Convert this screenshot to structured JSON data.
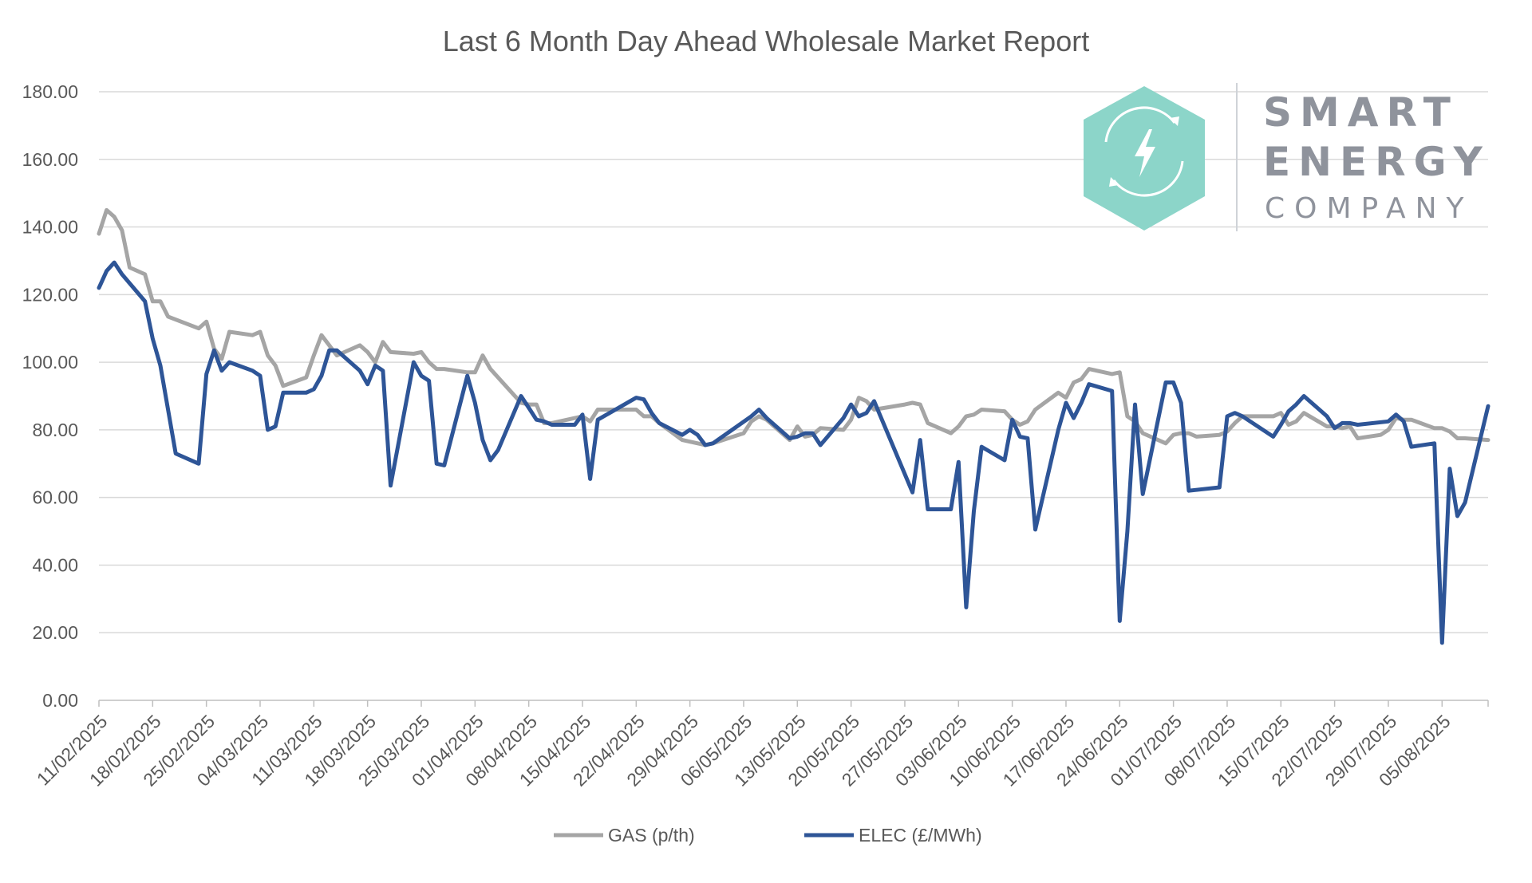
{
  "chart_data": {
    "type": "line",
    "title": "Last 6 Month Day Ahead Wholesale Market Report",
    "xlabel": "",
    "ylabel": "",
    "ylim": [
      0,
      180
    ],
    "yticks": [
      "0.00",
      "20.00",
      "40.00",
      "60.00",
      "80.00",
      "100.00",
      "120.00",
      "140.00",
      "160.00",
      "180.00"
    ],
    "x_start": "11/02/2025",
    "x_end": "11/08/2025",
    "xtick_labels": [
      "11/02/2025",
      "18/02/2025",
      "25/02/2025",
      "04/03/2025",
      "11/03/2025",
      "18/03/2025",
      "25/03/2025",
      "01/04/2025",
      "08/04/2025",
      "15/04/2025",
      "22/04/2025",
      "29/04/2025",
      "06/05/2025",
      "13/05/2025",
      "20/05/2025",
      "27/05/2025",
      "03/06/2025",
      "10/06/2025",
      "17/06/2025",
      "24/06/2025",
      "01/07/2025",
      "08/07/2025",
      "15/07/2025",
      "22/07/2025",
      "29/07/2025",
      "05/08/2025"
    ],
    "grid": "horizontal",
    "legend_position": "bottom",
    "series": [
      {
        "name": "GAS (p/th)",
        "color": "#a5a5a5",
        "points": [
          [
            "11/02/2025",
            138
          ],
          [
            "12/02/2025",
            145
          ],
          [
            "13/02/2025",
            143
          ],
          [
            "14/02/2025",
            139
          ],
          [
            "15/02/2025",
            128
          ],
          [
            "17/02/2025",
            126
          ],
          [
            "18/02/2025",
            118
          ],
          [
            "19/02/2025",
            118
          ],
          [
            "20/02/2025",
            113.5
          ],
          [
            "24/02/2025",
            110
          ],
          [
            "25/02/2025",
            112
          ],
          [
            "26/02/2025",
            104
          ],
          [
            "27/02/2025",
            101
          ],
          [
            "28/02/2025",
            109
          ],
          [
            "03/03/2025",
            108
          ],
          [
            "04/03/2025",
            109
          ],
          [
            "05/03/2025",
            102
          ],
          [
            "06/03/2025",
            99
          ],
          [
            "07/03/2025",
            93
          ],
          [
            "10/03/2025",
            95.5
          ],
          [
            "11/03/2025",
            102
          ],
          [
            "12/03/2025",
            108
          ],
          [
            "13/03/2025",
            105
          ],
          [
            "14/03/2025",
            102
          ],
          [
            "17/03/2025",
            105
          ],
          [
            "18/03/2025",
            103
          ],
          [
            "19/03/2025",
            100
          ],
          [
            "20/03/2025",
            106
          ],
          [
            "21/03/2025",
            103
          ],
          [
            "24/03/2025",
            102.5
          ],
          [
            "25/03/2025",
            103
          ],
          [
            "26/03/2025",
            100
          ],
          [
            "27/03/2025",
            98
          ],
          [
            "28/03/2025",
            98
          ],
          [
            "31/03/2025",
            97
          ],
          [
            "01/04/2025",
            97
          ],
          [
            "02/04/2025",
            102
          ],
          [
            "03/04/2025",
            98
          ],
          [
            "04/04/2025",
            95.5
          ],
          [
            "07/04/2025",
            88
          ],
          [
            "08/04/2025",
            87.5
          ],
          [
            "09/04/2025",
            87.5
          ],
          [
            "10/04/2025",
            82
          ],
          [
            "11/04/2025",
            82
          ],
          [
            "14/04/2025",
            83.5
          ],
          [
            "15/04/2025",
            84
          ],
          [
            "16/04/2025",
            82.5
          ],
          [
            "17/04/2025",
            86
          ],
          [
            "22/04/2025",
            86
          ],
          [
            "23/04/2025",
            84
          ],
          [
            "24/04/2025",
            84
          ],
          [
            "25/04/2025",
            82
          ],
          [
            "28/04/2025",
            77
          ],
          [
            "29/04/2025",
            76.5
          ],
          [
            "30/04/2025",
            76
          ],
          [
            "01/05/2025",
            75.5
          ],
          [
            "02/05/2025",
            76
          ],
          [
            "06/05/2025",
            79
          ],
          [
            "07/05/2025",
            82.5
          ],
          [
            "08/05/2025",
            84
          ],
          [
            "09/05/2025",
            83
          ],
          [
            "12/05/2025",
            77
          ],
          [
            "13/05/2025",
            81
          ],
          [
            "14/05/2025",
            78
          ],
          [
            "15/05/2025",
            78.5
          ],
          [
            "16/05/2025",
            80.5
          ],
          [
            "19/05/2025",
            80
          ],
          [
            "20/05/2025",
            83
          ],
          [
            "21/05/2025",
            89.5
          ],
          [
            "22/05/2025",
            88.5
          ],
          [
            "23/05/2025",
            86
          ],
          [
            "27/05/2025",
            87.5
          ],
          [
            "28/05/2025",
            88
          ],
          [
            "29/05/2025",
            87.5
          ],
          [
            "30/05/2025",
            82
          ],
          [
            "02/06/2025",
            79
          ],
          [
            "03/06/2025",
            81
          ],
          [
            "04/06/2025",
            84
          ],
          [
            "05/06/2025",
            84.5
          ],
          [
            "06/06/2025",
            86
          ],
          [
            "09/06/2025",
            85.5
          ],
          [
            "10/06/2025",
            83
          ],
          [
            "11/06/2025",
            81.5
          ],
          [
            "12/06/2025",
            82.5
          ],
          [
            "13/06/2025",
            86
          ],
          [
            "16/06/2025",
            91
          ],
          [
            "17/06/2025",
            89.5
          ],
          [
            "18/06/2025",
            94
          ],
          [
            "19/06/2025",
            95
          ],
          [
            "20/06/2025",
            98
          ],
          [
            "23/06/2025",
            96.5
          ],
          [
            "24/06/2025",
            97
          ],
          [
            "25/06/2025",
            84
          ],
          [
            "26/06/2025",
            82.5
          ],
          [
            "27/06/2025",
            79
          ],
          [
            "30/06/2025",
            76
          ],
          [
            "01/07/2025",
            78.5
          ],
          [
            "02/07/2025",
            79
          ],
          [
            "03/07/2025",
            79
          ],
          [
            "04/07/2025",
            78
          ],
          [
            "07/07/2025",
            78.5
          ],
          [
            "08/07/2025",
            79.5
          ],
          [
            "09/07/2025",
            82
          ],
          [
            "10/07/2025",
            84
          ],
          [
            "11/07/2025",
            84
          ],
          [
            "14/07/2025",
            84
          ],
          [
            "15/07/2025",
            85
          ],
          [
            "16/07/2025",
            81.5
          ],
          [
            "17/07/2025",
            82.5
          ],
          [
            "18/07/2025",
            85
          ],
          [
            "21/07/2025",
            81
          ],
          [
            "22/07/2025",
            81
          ],
          [
            "23/07/2025",
            80.5
          ],
          [
            "24/07/2025",
            81
          ],
          [
            "25/07/2025",
            77.5
          ],
          [
            "28/07/2025",
            78.5
          ],
          [
            "29/07/2025",
            80
          ],
          [
            "30/07/2025",
            83.5
          ],
          [
            "31/07/2025",
            83
          ],
          [
            "01/08/2025",
            83
          ],
          [
            "04/08/2025",
            80.5
          ],
          [
            "05/08/2025",
            80.5
          ],
          [
            "06/08/2025",
            79.5
          ],
          [
            "07/08/2025",
            77.5
          ],
          [
            "08/08/2025",
            77.5
          ],
          [
            "11/08/2025",
            77
          ]
        ]
      },
      {
        "name": "ELEC (£/MWh)",
        "color": "#2e5597",
        "points": [
          [
            "11/02/2025",
            122
          ],
          [
            "12/02/2025",
            127
          ],
          [
            "13/02/2025",
            129.5
          ],
          [
            "14/02/2025",
            126
          ],
          [
            "17/02/2025",
            118
          ],
          [
            "18/02/2025",
            107
          ],
          [
            "19/02/2025",
            99
          ],
          [
            "20/02/2025",
            86
          ],
          [
            "21/02/2025",
            73
          ],
          [
            "24/02/2025",
            70
          ],
          [
            "25/02/2025",
            96.5
          ],
          [
            "26/02/2025",
            103.5
          ],
          [
            "27/02/2025",
            97.5
          ],
          [
            "28/02/2025",
            100
          ],
          [
            "03/03/2025",
            97.5
          ],
          [
            "04/03/2025",
            96
          ],
          [
            "05/03/2025",
            80
          ],
          [
            "06/03/2025",
            81
          ],
          [
            "07/03/2025",
            91
          ],
          [
            "10/03/2025",
            91
          ],
          [
            "11/03/2025",
            92
          ],
          [
            "12/03/2025",
            96
          ],
          [
            "13/03/2025",
            103.5
          ],
          [
            "14/03/2025",
            103.5
          ],
          [
            "17/03/2025",
            97.5
          ],
          [
            "18/03/2025",
            93.5
          ],
          [
            "19/03/2025",
            99
          ],
          [
            "20/03/2025",
            97.5
          ],
          [
            "21/03/2025",
            63.5
          ],
          [
            "24/03/2025",
            100
          ],
          [
            "25/03/2025",
            96
          ],
          [
            "26/03/2025",
            94.5
          ],
          [
            "27/03/2025",
            70
          ],
          [
            "28/03/2025",
            69.5
          ],
          [
            "31/03/2025",
            96
          ],
          [
            "01/04/2025",
            88
          ],
          [
            "02/04/2025",
            77
          ],
          [
            "03/04/2025",
            71
          ],
          [
            "04/04/2025",
            74
          ],
          [
            "07/04/2025",
            90
          ],
          [
            "08/04/2025",
            86.5
          ],
          [
            "09/04/2025",
            83
          ],
          [
            "10/04/2025",
            82.5
          ],
          [
            "11/04/2025",
            81.5
          ],
          [
            "14/04/2025",
            81.5
          ],
          [
            "15/04/2025",
            84.5
          ],
          [
            "16/04/2025",
            65.5
          ],
          [
            "17/04/2025",
            83
          ],
          [
            "22/04/2025",
            89.5
          ],
          [
            "23/04/2025",
            89
          ],
          [
            "24/04/2025",
            85
          ],
          [
            "25/04/2025",
            82
          ],
          [
            "28/04/2025",
            78.5
          ],
          [
            "29/04/2025",
            80
          ],
          [
            "30/04/2025",
            78.5
          ],
          [
            "01/05/2025",
            75.5
          ],
          [
            "02/05/2025",
            76
          ],
          [
            "07/05/2025",
            84
          ],
          [
            "08/05/2025",
            86
          ],
          [
            "09/05/2025",
            83.5
          ],
          [
            "12/05/2025",
            77.5
          ],
          [
            "13/05/2025",
            78
          ],
          [
            "14/05/2025",
            79
          ],
          [
            "15/05/2025",
            79
          ],
          [
            "16/05/2025",
            75.5
          ],
          [
            "19/05/2025",
            83.5
          ],
          [
            "20/05/2025",
            87.5
          ],
          [
            "21/05/2025",
            84
          ],
          [
            "22/05/2025",
            85
          ],
          [
            "23/05/2025",
            88.5
          ],
          [
            "28/05/2025",
            61.5
          ],
          [
            "29/05/2025",
            77
          ],
          [
            "30/05/2025",
            56.5
          ],
          [
            "02/06/2025",
            56.5
          ],
          [
            "03/06/2025",
            70.5
          ],
          [
            "04/06/2025",
            27.5
          ],
          [
            "05/06/2025",
            56
          ],
          [
            "06/06/2025",
            75
          ],
          [
            "09/06/2025",
            71
          ],
          [
            "10/06/2025",
            83
          ],
          [
            "11/06/2025",
            78
          ],
          [
            "12/06/2025",
            77.5
          ],
          [
            "13/06/2025",
            50.5
          ],
          [
            "16/06/2025",
            80
          ],
          [
            "17/06/2025",
            88
          ],
          [
            "18/06/2025",
            83.5
          ],
          [
            "19/06/2025",
            88
          ],
          [
            "20/06/2025",
            93.5
          ],
          [
            "23/06/2025",
            91.5
          ],
          [
            "24/06/2025",
            23.5
          ],
          [
            "25/06/2025",
            50
          ],
          [
            "26/06/2025",
            87.5
          ],
          [
            "27/06/2025",
            61
          ],
          [
            "30/06/2025",
            94
          ],
          [
            "01/07/2025",
            94
          ],
          [
            "02/07/2025",
            88
          ],
          [
            "03/07/2025",
            62
          ],
          [
            "07/07/2025",
            63
          ],
          [
            "08/07/2025",
            84
          ],
          [
            "09/07/2025",
            85
          ],
          [
            "10/07/2025",
            84
          ],
          [
            "14/07/2025",
            78
          ],
          [
            "15/07/2025",
            81.5
          ],
          [
            "16/07/2025",
            85.5
          ],
          [
            "17/07/2025",
            87.5
          ],
          [
            "18/07/2025",
            90
          ],
          [
            "21/07/2025",
            84
          ],
          [
            "22/07/2025",
            80.5
          ],
          [
            "23/07/2025",
            82
          ],
          [
            "24/07/2025",
            82
          ],
          [
            "25/07/2025",
            81.5
          ],
          [
            "29/07/2025",
            82.5
          ],
          [
            "30/07/2025",
            84.5
          ],
          [
            "31/07/2025",
            82.5
          ],
          [
            "01/08/2025",
            75
          ],
          [
            "04/08/2025",
            76
          ],
          [
            "05/08/2025",
            17
          ],
          [
            "06/08/2025",
            68.5
          ],
          [
            "07/08/2025",
            54.5
          ],
          [
            "08/08/2025",
            58.5
          ],
          [
            "11/08/2025",
            87
          ]
        ]
      }
    ]
  },
  "logo": {
    "line1": "SMART",
    "line2": "ENERGY",
    "line3": "COMPANY",
    "hex_color": "#8cd5c9",
    "icon": "lightning-bolt-refresh-icon"
  }
}
